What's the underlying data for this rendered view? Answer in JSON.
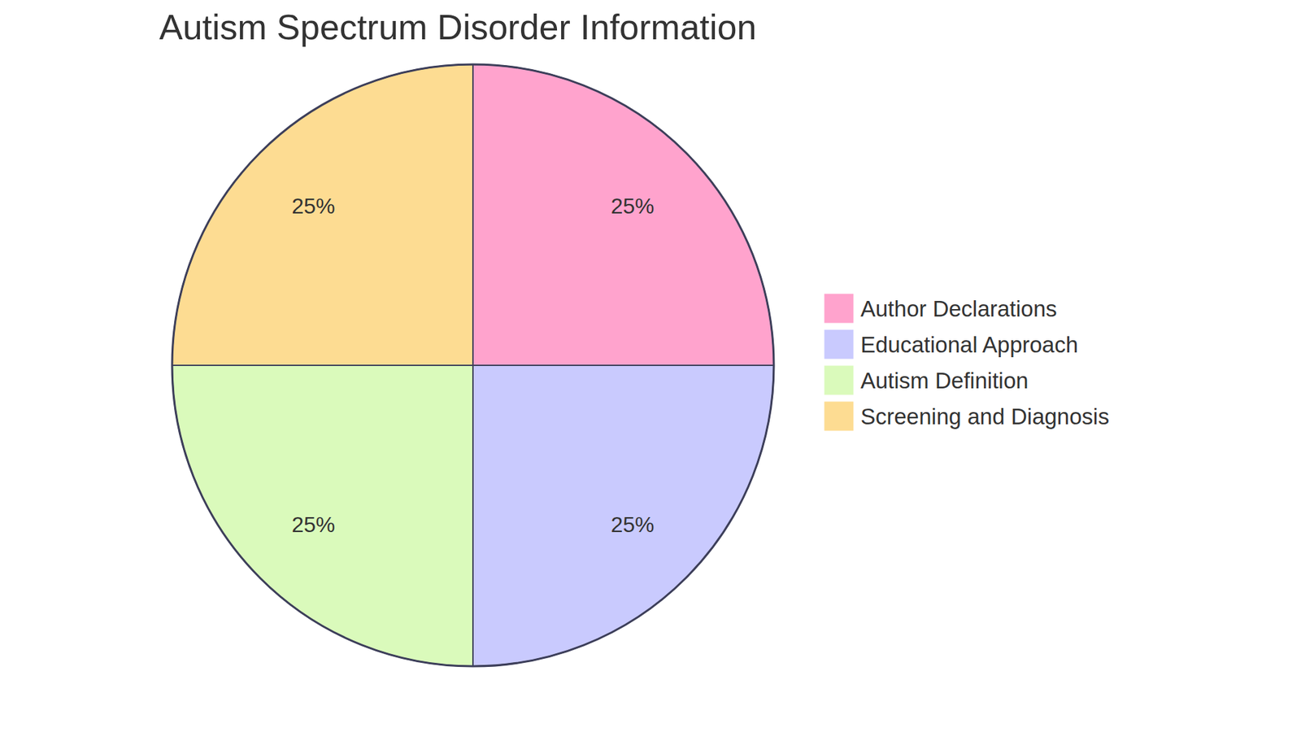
{
  "chart_data": {
    "type": "pie",
    "title": "Autism Spectrum Disorder Information",
    "categories": [
      "Author Declarations",
      "Educational Approach",
      "Autism Definition",
      "Screening and Diagnosis"
    ],
    "values": [
      25,
      25,
      25,
      25
    ],
    "value_labels": [
      "25%",
      "25%",
      "25%",
      "25%"
    ],
    "colors": [
      "#ffa3cd",
      "#c9cafe",
      "#dafabb",
      "#fddc92"
    ],
    "data_labels": true,
    "legend": "right"
  }
}
